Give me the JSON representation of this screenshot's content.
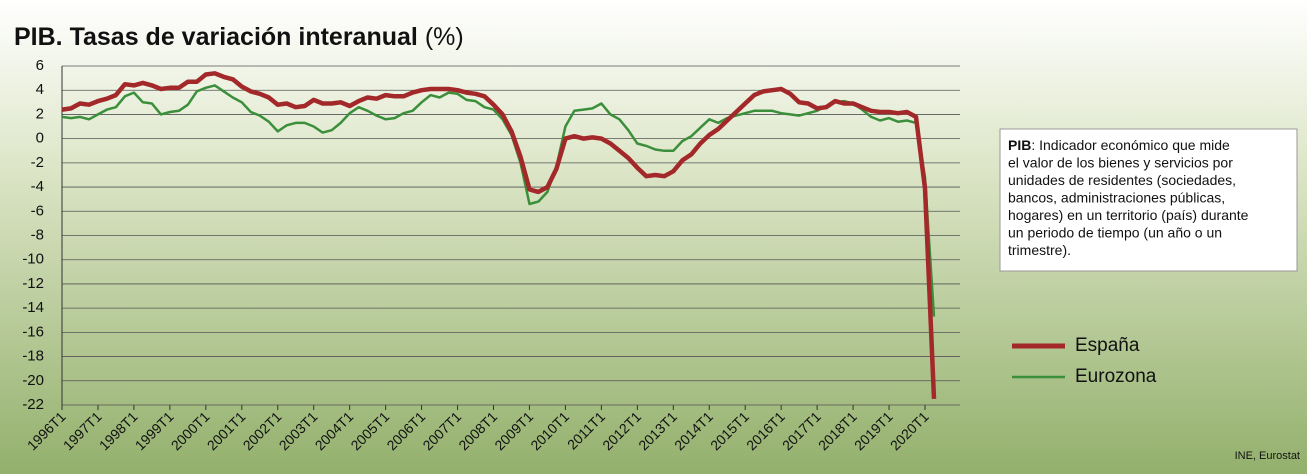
{
  "chart_data": {
    "type": "line",
    "title": "PIB. Tasas de variación interanual",
    "title_unit": "(%)",
    "categories": [
      "1996T1",
      null,
      null,
      null,
      "1997T1",
      null,
      null,
      null,
      "1998T1",
      null,
      null,
      null,
      "1999T1",
      null,
      null,
      null,
      "2000T1",
      null,
      null,
      null,
      "2001T1",
      null,
      null,
      null,
      "2002T1",
      null,
      null,
      null,
      "2003T1",
      null,
      null,
      null,
      "2004T1",
      null,
      null,
      null,
      "2005T1",
      null,
      null,
      null,
      "2006T1",
      null,
      null,
      null,
      "2007T1",
      null,
      null,
      null,
      "2008T1",
      null,
      null,
      null,
      "2009T1",
      null,
      null,
      null,
      "2010T1",
      null,
      null,
      null,
      "2011T1",
      null,
      null,
      null,
      "2012T1",
      null,
      null,
      null,
      "2013T1",
      null,
      null,
      null,
      "2014T1",
      null,
      null,
      null,
      "2015T1",
      null,
      null,
      null,
      "2016T1",
      null,
      null,
      null,
      "2017T1",
      null,
      null,
      null,
      "2018T1",
      null,
      null,
      null,
      "2019T1",
      null,
      null,
      null,
      "2020T1",
      null
    ],
    "series": [
      {
        "name": "España",
        "color": "#a3282a",
        "values": [
          2.4,
          2.5,
          2.9,
          2.8,
          3.1,
          3.3,
          3.6,
          4.5,
          4.4,
          4.6,
          4.4,
          4.1,
          4.2,
          4.2,
          4.7,
          4.7,
          5.3,
          5.4,
          5.1,
          4.9,
          4.3,
          3.9,
          3.7,
          3.4,
          2.8,
          2.9,
          2.6,
          2.7,
          3.2,
          2.9,
          2.9,
          3.0,
          2.7,
          3.1,
          3.4,
          3.3,
          3.6,
          3.5,
          3.5,
          3.8,
          4.0,
          4.1,
          4.1,
          4.1,
          4.0,
          3.8,
          3.7,
          3.5,
          2.8,
          2.0,
          0.6,
          -1.5,
          -4.2,
          -4.4,
          -4.0,
          -2.5,
          0.0,
          0.2,
          0.0,
          0.1,
          0.0,
          -0.4,
          -1.0,
          -1.6,
          -2.4,
          -3.1,
          -3.0,
          -3.1,
          -2.7,
          -1.8,
          -1.3,
          -0.4,
          0.3,
          0.8,
          1.5,
          2.2,
          2.9,
          3.6,
          3.9,
          4.0,
          4.1,
          3.7,
          3.0,
          2.9,
          2.5,
          2.6,
          3.1,
          2.9,
          2.9,
          2.6,
          2.3,
          2.2,
          2.2,
          2.1,
          2.2,
          1.8,
          -4.1,
          -21.5
        ]
      },
      {
        "name": "Eurozona",
        "color": "#3b8f3b",
        "values": [
          1.8,
          1.7,
          1.8,
          1.6,
          2.0,
          2.4,
          2.6,
          3.5,
          3.8,
          3.0,
          2.9,
          2.0,
          2.2,
          2.3,
          2.8,
          3.9,
          4.2,
          4.4,
          3.9,
          3.4,
          3.0,
          2.2,
          1.9,
          1.4,
          0.6,
          1.1,
          1.3,
          1.3,
          1.0,
          0.5,
          0.7,
          1.3,
          2.1,
          2.6,
          2.3,
          1.9,
          1.6,
          1.7,
          2.1,
          2.3,
          3.0,
          3.6,
          3.4,
          3.8,
          3.7,
          3.2,
          3.1,
          2.6,
          2.4,
          1.6,
          0.3,
          -2.0,
          -5.4,
          -5.2,
          -4.4,
          -2.3,
          1.0,
          2.3,
          2.4,
          2.5,
          2.9,
          2.0,
          1.6,
          0.7,
          -0.4,
          -0.6,
          -0.9,
          -1.0,
          -1.0,
          -0.2,
          0.2,
          0.9,
          1.6,
          1.3,
          1.7,
          1.9,
          2.1,
          2.3,
          2.3,
          2.3,
          2.1,
          2.0,
          1.9,
          2.1,
          2.3,
          2.7,
          3.0,
          3.1,
          2.9,
          2.4,
          1.8,
          1.5,
          1.7,
          1.4,
          1.5,
          1.3,
          -3.2,
          -14.7
        ]
      }
    ],
    "ylim": [
      -22,
      6
    ],
    "yticks": [
      6,
      4,
      2,
      0,
      -2,
      -4,
      -6,
      -8,
      -10,
      -12,
      -14,
      -16,
      -18,
      -20,
      -22
    ],
    "grid": true,
    "note": {
      "term": "PIB",
      "lines": [
        ": Indicador económico que mide",
        "el valor de los bienes y servicios por",
        "unidades de residentes (sociedades,",
        "bancos, administraciones públicas,",
        "hogares) en un territorio (país) durante",
        "un periodo de tiempo (un año o un",
        "trimestre)."
      ]
    },
    "source": "INE, Eurostat"
  }
}
